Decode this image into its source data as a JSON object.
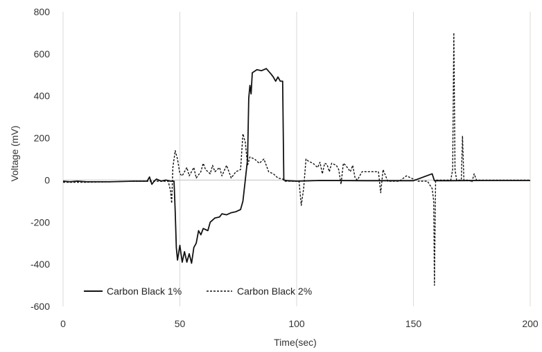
{
  "chart_data": {
    "type": "line",
    "title": "",
    "xlabel": "Time(sec)",
    "ylabel": "Voltage (mV)",
    "xlim": [
      0,
      200
    ],
    "ylim": [
      -600,
      800
    ],
    "xticks": [
      0,
      50,
      100,
      150,
      200
    ],
    "xtick_labels": [
      "0",
      "50",
      "100",
      "150",
      "200"
    ],
    "yticks": [
      -600,
      -400,
      -200,
      0,
      200,
      400,
      600,
      800
    ],
    "ytick_labels": [
      "-600",
      "-400",
      "-200",
      "0",
      "200",
      "400",
      "600",
      "800"
    ],
    "grid": "vertical",
    "legend_position": "bottom-left",
    "series": [
      {
        "name": "Carbon Black 1%",
        "style": "solid",
        "color": "#111111",
        "points": [
          [
            0,
            -5
          ],
          [
            3,
            -8
          ],
          [
            6,
            -5
          ],
          [
            10,
            -8
          ],
          [
            20,
            -8
          ],
          [
            30,
            -5
          ],
          [
            36,
            -5
          ],
          [
            37,
            15
          ],
          [
            38,
            -20
          ],
          [
            39,
            -5
          ],
          [
            40,
            5
          ],
          [
            42,
            -5
          ],
          [
            44,
            0
          ],
          [
            46,
            -5
          ],
          [
            47.5,
            -5
          ],
          [
            48,
            -150
          ],
          [
            48.5,
            -320
          ],
          [
            49,
            -380
          ],
          [
            50,
            -310
          ],
          [
            51,
            -390
          ],
          [
            52,
            -340
          ],
          [
            53,
            -390
          ],
          [
            54,
            -350
          ],
          [
            55,
            -395
          ],
          [
            56,
            -320
          ],
          [
            57,
            -300
          ],
          [
            58,
            -240
          ],
          [
            59,
            -260
          ],
          [
            60,
            -230
          ],
          [
            62,
            -240
          ],
          [
            63,
            -200
          ],
          [
            65,
            -180
          ],
          [
            67,
            -175
          ],
          [
            68,
            -160
          ],
          [
            70,
            -165
          ],
          [
            72,
            -155
          ],
          [
            74,
            -150
          ],
          [
            76,
            -140
          ],
          [
            77,
            -100
          ],
          [
            78,
            0
          ],
          [
            79,
            100
          ],
          [
            79.5,
            390
          ],
          [
            80,
            450
          ],
          [
            80.5,
            410
          ],
          [
            81,
            510
          ],
          [
            83,
            525
          ],
          [
            85,
            520
          ],
          [
            87,
            530
          ],
          [
            89,
            505
          ],
          [
            90,
            490
          ],
          [
            91,
            470
          ],
          [
            92,
            490
          ],
          [
            93,
            470
          ],
          [
            94,
            470
          ],
          [
            94.5,
            0
          ],
          [
            96,
            -3
          ],
          [
            100,
            -5
          ],
          [
            110,
            -2
          ],
          [
            130,
            -3
          ],
          [
            150,
            -3
          ],
          [
            158,
            30
          ],
          [
            159,
            -3
          ],
          [
            165,
            -3
          ],
          [
            180,
            -2
          ],
          [
            200,
            -2
          ]
        ]
      },
      {
        "name": "Carbon Black 2%",
        "style": "dashed",
        "color": "#111111",
        "points": [
          [
            0,
            -10
          ],
          [
            10,
            -10
          ],
          [
            20,
            -8
          ],
          [
            30,
            -5
          ],
          [
            45,
            -5
          ],
          [
            46,
            -50
          ],
          [
            46.5,
            -110
          ],
          [
            47,
            60
          ],
          [
            48,
            140
          ],
          [
            49,
            100
          ],
          [
            50,
            30
          ],
          [
            51,
            20
          ],
          [
            53,
            60
          ],
          [
            54,
            20
          ],
          [
            56,
            60
          ],
          [
            57,
            10
          ],
          [
            59,
            40
          ],
          [
            60,
            80
          ],
          [
            61,
            50
          ],
          [
            63,
            30
          ],
          [
            64,
            70
          ],
          [
            65,
            40
          ],
          [
            67,
            60
          ],
          [
            68,
            20
          ],
          [
            70,
            70
          ],
          [
            72,
            10
          ],
          [
            74,
            40
          ],
          [
            76,
            50
          ],
          [
            77,
            220
          ],
          [
            78,
            180
          ],
          [
            79,
            70
          ],
          [
            80,
            110
          ],
          [
            82,
            100
          ],
          [
            84,
            80
          ],
          [
            86,
            100
          ],
          [
            88,
            40
          ],
          [
            90,
            30
          ],
          [
            92,
            10
          ],
          [
            94,
            5
          ],
          [
            95,
            -5
          ],
          [
            101,
            -5
          ],
          [
            102,
            -120
          ],
          [
            103,
            -40
          ],
          [
            104,
            100
          ],
          [
            105,
            90
          ],
          [
            107,
            80
          ],
          [
            109,
            60
          ],
          [
            110,
            85
          ],
          [
            111,
            30
          ],
          [
            112,
            80
          ],
          [
            113,
            75
          ],
          [
            114,
            40
          ],
          [
            115,
            80
          ],
          [
            117,
            70
          ],
          [
            118,
            50
          ],
          [
            119,
            -20
          ],
          [
            120,
            80
          ],
          [
            121,
            70
          ],
          [
            123,
            40
          ],
          [
            124,
            70
          ],
          [
            125,
            10
          ],
          [
            126,
            0
          ],
          [
            128,
            40
          ],
          [
            132,
            40
          ],
          [
            135,
            40
          ],
          [
            136,
            -60
          ],
          [
            137,
            50
          ],
          [
            139,
            -5
          ],
          [
            144,
            -5
          ],
          [
            147,
            20
          ],
          [
            149,
            10
          ],
          [
            152,
            -5
          ],
          [
            156,
            -5
          ],
          [
            158,
            -40
          ],
          [
            158.7,
            -100
          ],
          [
            159,
            -500
          ],
          [
            159.5,
            0
          ],
          [
            163,
            0
          ],
          [
            166,
            0
          ],
          [
            166.8,
            50
          ],
          [
            167.3,
            700
          ],
          [
            167.8,
            50
          ],
          [
            168.5,
            0
          ],
          [
            170.5,
            0
          ],
          [
            171,
            210
          ],
          [
            171.6,
            0
          ],
          [
            174,
            0
          ],
          [
            175,
            -10
          ],
          [
            176,
            30
          ],
          [
            177,
            0
          ],
          [
            200,
            0
          ]
        ]
      }
    ]
  }
}
